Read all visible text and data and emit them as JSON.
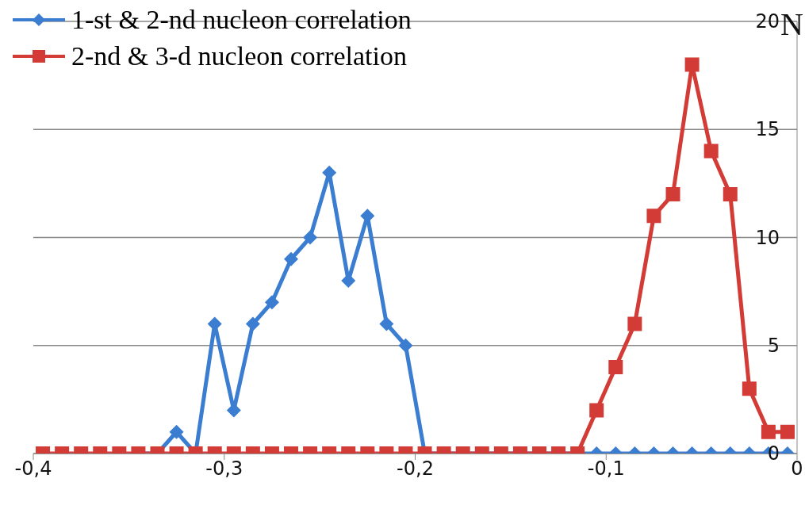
{
  "chart_data": {
    "type": "line",
    "ylabel": "N",
    "x": [
      -0.395,
      -0.385,
      -0.375,
      -0.365,
      -0.355,
      -0.345,
      -0.335,
      -0.325,
      -0.315,
      -0.305,
      -0.295,
      -0.285,
      -0.275,
      -0.265,
      -0.255,
      -0.245,
      -0.235,
      -0.225,
      -0.215,
      -0.205,
      -0.195,
      -0.185,
      -0.175,
      -0.165,
      -0.155,
      -0.145,
      -0.135,
      -0.125,
      -0.115,
      -0.105,
      -0.095,
      -0.085,
      -0.075,
      -0.065,
      -0.055,
      -0.045,
      -0.035,
      -0.025,
      -0.015,
      -0.005
    ],
    "series": [
      {
        "name": "1-st & 2-nd nucleon correlation",
        "color": "#3b7dd1",
        "marker": "diamond",
        "values": [
          null,
          null,
          null,
          null,
          null,
          0,
          0,
          1,
          0,
          6,
          2,
          6,
          7,
          9,
          10,
          13,
          8,
          11,
          6,
          5,
          0,
          0,
          0,
          0,
          0,
          0,
          0,
          0,
          0,
          0,
          0,
          0,
          0,
          0,
          0,
          0,
          0,
          0,
          0,
          0
        ]
      },
      {
        "name": "2-nd & 3-d nucleon correlation",
        "color": "#d23b36",
        "marker": "square",
        "values": [
          0,
          0,
          0,
          0,
          0,
          0,
          0,
          0,
          0,
          0,
          0,
          0,
          0,
          0,
          0,
          0,
          0,
          0,
          0,
          0,
          0,
          0,
          0,
          0,
          0,
          0,
          0,
          0,
          0,
          2,
          4,
          6,
          11,
          12,
          18,
          14,
          12,
          3,
          1,
          1
        ]
      }
    ],
    "xlim": [
      -0.4,
      0
    ],
    "xticks": [
      {
        "value": -0.4,
        "label": "-0,4"
      },
      {
        "value": -0.3,
        "label": "-0,3"
      },
      {
        "value": -0.2,
        "label": "-0,2"
      },
      {
        "value": -0.1,
        "label": "-0,1"
      },
      0
    ],
    "ylim": [
      0,
      20
    ],
    "yticks": [
      0,
      5,
      10,
      15,
      20
    ],
    "grid": "y",
    "legend": "top left"
  }
}
